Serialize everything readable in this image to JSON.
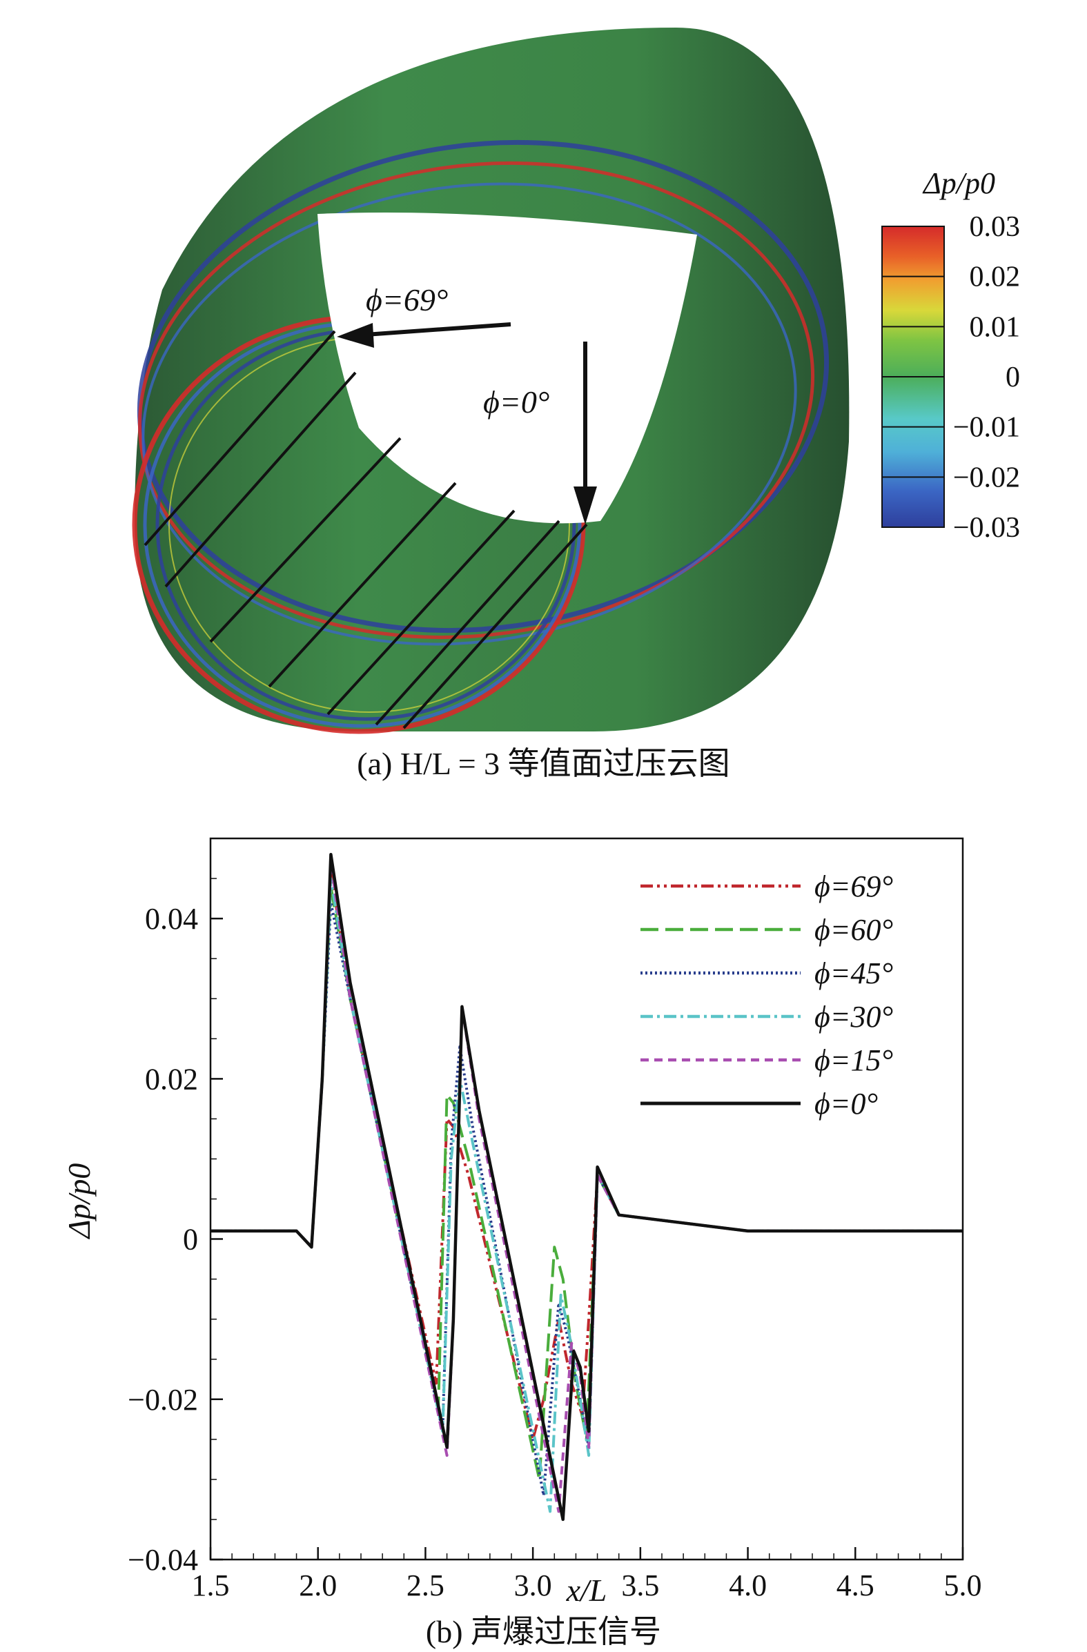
{
  "panel_a": {
    "caption": "(a) H/L = 3 等值面过压云图",
    "colorbar": {
      "title": "Δp/p0",
      "ticks": [
        "0.03",
        "0.02",
        "0.01",
        "0",
        "−0.01",
        "−0.02",
        "−0.03"
      ],
      "colors": [
        "#2e3f9c",
        "#3b66c4",
        "#4fb0d8",
        "#58c9c8",
        "#4cae5a",
        "#7ec443",
        "#d8d83a",
        "#f0a030",
        "#e86028",
        "#d52b2a"
      ]
    },
    "annotations": [
      {
        "text": "ϕ=69°"
      },
      {
        "text": "ϕ=0°"
      }
    ]
  },
  "panel_b": {
    "caption": "(b) 声爆过压信号"
  },
  "chart_data": {
    "type": "line",
    "xlabel": "x/L",
    "ylabel": "Δp/p0",
    "xlim": [
      1.5,
      5.0
    ],
    "ylim": [
      -0.04,
      0.05
    ],
    "xticks": [
      "1.5",
      "2.0",
      "2.5",
      "3.0",
      "3.5",
      "4.0",
      "4.5",
      "5.0"
    ],
    "yticks": [
      "−0.04",
      "−0.02",
      "0",
      "0.02",
      "0.04"
    ],
    "legend_position": "top-right",
    "series": [
      {
        "name": "ϕ=69°",
        "color": "#c0272d",
        "dash": "dashdotdot",
        "x": [
          1.5,
          1.9,
          1.97,
          2.02,
          2.06,
          2.15,
          2.55,
          2.6,
          2.63,
          2.7,
          3.0,
          3.05,
          3.12,
          3.18,
          3.23,
          3.26,
          3.3,
          3.4,
          4.0,
          5.0
        ],
        "y": [
          0.001,
          0.001,
          -0.001,
          0.02,
          0.046,
          0.03,
          -0.018,
          0.015,
          0.014,
          0.008,
          -0.025,
          -0.02,
          -0.01,
          -0.018,
          -0.022,
          -0.01,
          0.008,
          0.003,
          0.001,
          0.001
        ]
      },
      {
        "name": "ϕ=60°",
        "color": "#4aad3c",
        "dash": "longdash",
        "x": [
          1.5,
          1.9,
          1.97,
          2.02,
          2.06,
          2.15,
          2.56,
          2.6,
          2.63,
          2.7,
          3.03,
          3.1,
          3.14,
          3.2,
          3.25,
          3.3,
          3.4,
          4.0,
          5.0
        ],
        "y": [
          0.001,
          0.001,
          -0.001,
          0.02,
          0.044,
          0.03,
          -0.021,
          0.018,
          0.017,
          0.01,
          -0.03,
          -0.001,
          -0.005,
          -0.018,
          -0.025,
          0.008,
          0.003,
          0.001,
          0.001
        ]
      },
      {
        "name": "ϕ=45°",
        "color": "#283d8c",
        "dash": "dotted",
        "x": [
          1.5,
          1.9,
          1.97,
          2.02,
          2.06,
          2.15,
          2.58,
          2.62,
          2.66,
          2.72,
          3.05,
          3.12,
          3.16,
          3.22,
          3.26,
          3.3,
          3.4,
          4.0,
          5.0
        ],
        "y": [
          0.001,
          0.001,
          -0.001,
          0.02,
          0.042,
          0.03,
          -0.024,
          0.012,
          0.024,
          0.014,
          -0.032,
          -0.008,
          -0.012,
          -0.02,
          -0.026,
          0.008,
          0.003,
          0.001,
          0.001
        ]
      },
      {
        "name": "ϕ=30°",
        "color": "#5bc4c8",
        "dash": "dashdot",
        "x": [
          1.5,
          1.9,
          1.97,
          2.02,
          2.06,
          2.15,
          2.58,
          2.62,
          2.66,
          2.72,
          3.08,
          3.13,
          3.17,
          3.22,
          3.26,
          3.3,
          3.4,
          4.0,
          5.0
        ],
        "y": [
          0.001,
          0.001,
          -0.001,
          0.02,
          0.045,
          0.03,
          -0.024,
          0.01,
          0.02,
          0.012,
          -0.034,
          -0.007,
          -0.012,
          -0.02,
          -0.027,
          0.008,
          0.003,
          0.001,
          0.001
        ]
      },
      {
        "name": "ϕ=15°",
        "color": "#a84db0",
        "dash": "shortdash",
        "x": [
          1.5,
          1.9,
          1.97,
          2.02,
          2.06,
          2.15,
          2.6,
          2.63,
          2.67,
          2.75,
          3.12,
          3.18,
          3.22,
          3.26,
          3.3,
          3.4,
          4.0,
          5.0
        ],
        "y": [
          0.001,
          0.001,
          -0.001,
          0.02,
          0.047,
          0.03,
          -0.027,
          -0.01,
          0.029,
          0.015,
          -0.034,
          -0.013,
          -0.017,
          -0.026,
          0.008,
          0.003,
          0.001,
          0.001
        ]
      },
      {
        "name": "ϕ=0°",
        "color": "#111111",
        "dash": "solid",
        "x": [
          1.5,
          1.9,
          1.97,
          2.02,
          2.06,
          2.15,
          2.6,
          2.63,
          2.67,
          2.75,
          3.14,
          3.19,
          3.22,
          3.26,
          3.3,
          3.4,
          4.0,
          5.0
        ],
        "y": [
          0.001,
          0.001,
          -0.001,
          0.02,
          0.048,
          0.032,
          -0.026,
          -0.01,
          0.029,
          0.016,
          -0.035,
          -0.014,
          -0.016,
          -0.024,
          0.009,
          0.003,
          0.001,
          0.001
        ]
      }
    ]
  }
}
